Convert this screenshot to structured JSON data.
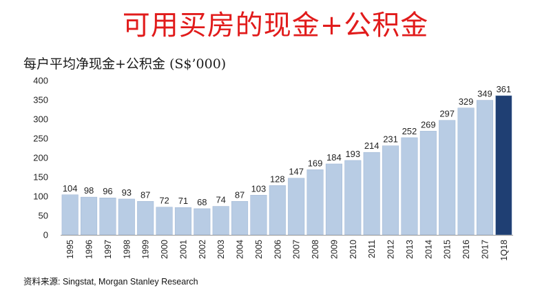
{
  "header": {
    "title": "可用买房的现金+公积金",
    "subtitle": "每户平均净现金+公积金 (S$’000)"
  },
  "footer": {
    "source": "资料来源: Singstat, Morgan Stanley Research"
  },
  "colors": {
    "title": "#e11b1b",
    "bar": "#b8cce4",
    "bar_highlight": "#1f3f73",
    "axis": "#9a9a9a"
  },
  "chart_data": {
    "type": "bar",
    "categories": [
      "1995",
      "1996",
      "1997",
      "1998",
      "1999",
      "2000",
      "2001",
      "2002",
      "2003",
      "2004",
      "2005",
      "2006",
      "2007",
      "2008",
      "2009",
      "2010",
      "2011",
      "2012",
      "2013",
      "2014",
      "2015",
      "2016",
      "2017",
      "1Q18"
    ],
    "values": [
      104,
      98,
      96,
      93,
      87,
      72,
      71,
      68,
      74,
      87,
      103,
      128,
      147,
      169,
      184,
      193,
      214,
      231,
      252,
      269,
      297,
      329,
      349,
      361
    ],
    "highlight_index": 23,
    "title": "每户平均净现金+公积金 (S$’000)",
    "xlabel": "",
    "ylabel": "",
    "ylim": [
      0,
      400
    ],
    "yticks": [
      0,
      50,
      100,
      150,
      200,
      250,
      300,
      350,
      400
    ],
    "grid": false,
    "legend": "none"
  }
}
